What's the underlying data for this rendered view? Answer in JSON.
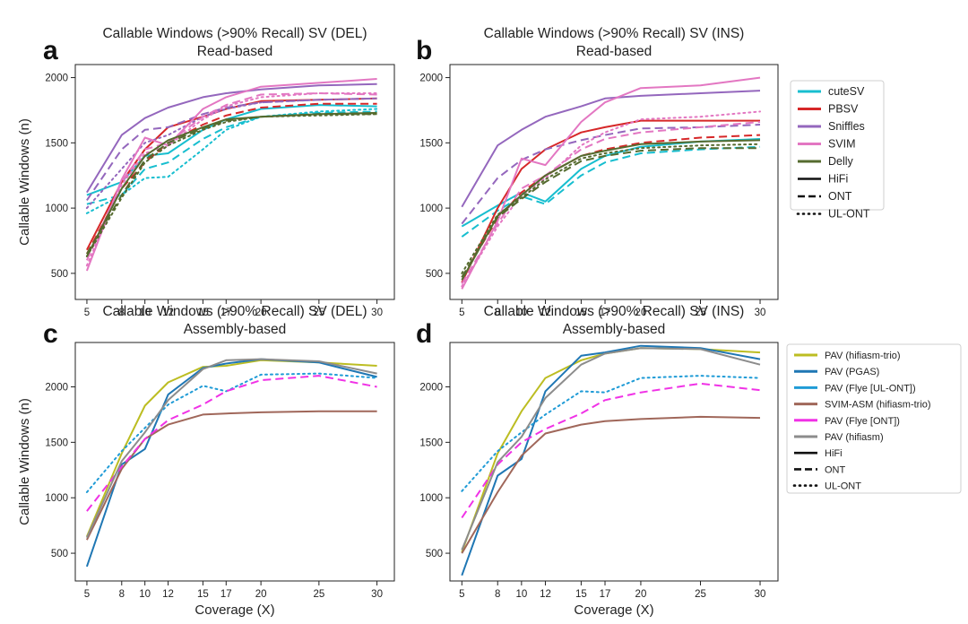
{
  "chart_data": [
    {
      "type": "line",
      "panel": "a",
      "title_line1": "Callable Windows (>90% Recall) SV (DEL)",
      "title_line2": "Read-based",
      "xlabel": "",
      "ylabel": "Callable Windows (n)",
      "x": [
        5,
        8,
        10,
        12,
        15,
        17,
        20,
        25,
        30
      ],
      "ylim": [
        300,
        2100
      ],
      "yticks": [
        500,
        1000,
        1500,
        2000
      ],
      "series": [
        {
          "name": "cuteSV HiFi",
          "color": "#17becf",
          "style": "solid",
          "values": [
            1100,
            1200,
            1400,
            1420,
            1600,
            1680,
            1760,
            1790,
            1780
          ]
        },
        {
          "name": "cuteSV ONT",
          "color": "#17becf",
          "style": "dashed",
          "values": [
            1030,
            1100,
            1300,
            1350,
            1530,
            1620,
            1700,
            1730,
            1740
          ]
        },
        {
          "name": "cuteSV UL-ONT",
          "color": "#17becf",
          "style": "dotted",
          "values": [
            960,
            1100,
            1230,
            1240,
            1450,
            1600,
            1700,
            1740,
            1760
          ]
        },
        {
          "name": "PBSV HiFi",
          "color": "#d62728",
          "style": "solid",
          "values": [
            680,
            1200,
            1450,
            1620,
            1700,
            1760,
            1820,
            1830,
            1840
          ]
        },
        {
          "name": "PBSV ONT",
          "color": "#d62728",
          "style": "dashed",
          "values": [
            650,
            1150,
            1350,
            1500,
            1640,
            1710,
            1770,
            1800,
            1800
          ]
        },
        {
          "name": "Sniffles HiFi",
          "color": "#9467bd",
          "style": "solid",
          "values": [
            1120,
            1560,
            1690,
            1770,
            1850,
            1880,
            1910,
            1940,
            1950
          ]
        },
        {
          "name": "Sniffles ONT",
          "color": "#9467bd",
          "style": "dashed",
          "values": [
            1060,
            1450,
            1600,
            1620,
            1720,
            1770,
            1810,
            1830,
            1840
          ]
        },
        {
          "name": "Sniffles UL-ONT",
          "color": "#9467bd",
          "style": "dotted",
          "values": [
            1000,
            1300,
            1500,
            1560,
            1700,
            1760,
            1810,
            1830,
            1840
          ]
        },
        {
          "name": "SVIM HiFi",
          "color": "#e377c2",
          "style": "solid",
          "values": [
            520,
            1220,
            1540,
            1480,
            1760,
            1850,
            1930,
            1960,
            1990
          ]
        },
        {
          "name": "SVIM ONT",
          "color": "#e377c2",
          "style": "dashed",
          "values": [
            600,
            1200,
            1450,
            1500,
            1700,
            1790,
            1870,
            1880,
            1870
          ]
        },
        {
          "name": "SVIM UL-ONT",
          "color": "#e377c2",
          "style": "dotted",
          "values": [
            560,
            1180,
            1420,
            1480,
            1680,
            1780,
            1850,
            1880,
            1880
          ]
        },
        {
          "name": "Delly HiFi",
          "color": "#556b2f",
          "style": "solid",
          "values": [
            630,
            1150,
            1400,
            1520,
            1620,
            1680,
            1700,
            1720,
            1730
          ]
        },
        {
          "name": "Delly ONT",
          "color": "#556b2f",
          "style": "dashed",
          "values": [
            650,
            1100,
            1370,
            1500,
            1610,
            1670,
            1700,
            1720,
            1720
          ]
        },
        {
          "name": "Delly UL-ONT",
          "color": "#556b2f",
          "style": "dotted",
          "values": [
            630,
            1080,
            1350,
            1480,
            1600,
            1660,
            1700,
            1710,
            1720
          ]
        }
      ]
    },
    {
      "type": "line",
      "panel": "b",
      "title_line1": "Callable Windows (>90% Recall) SV (INS)",
      "title_line2": "Read-based",
      "xlabel": "",
      "ylabel": "",
      "x": [
        5,
        8,
        10,
        12,
        15,
        17,
        20,
        25,
        30
      ],
      "ylim": [
        300,
        2100
      ],
      "yticks": [
        500,
        1000,
        1500,
        2000
      ],
      "series": [
        {
          "name": "cuteSV HiFi",
          "color": "#17becf",
          "style": "solid",
          "values": [
            860,
            1020,
            1120,
            1050,
            1300,
            1400,
            1470,
            1510,
            1530
          ]
        },
        {
          "name": "cuteSV ONT",
          "color": "#17becf",
          "style": "dashed",
          "values": [
            780,
            980,
            1090,
            1030,
            1250,
            1350,
            1420,
            1450,
            1470
          ]
        },
        {
          "name": "PBSV HiFi",
          "color": "#d62728",
          "style": "solid",
          "values": [
            430,
            1000,
            1300,
            1450,
            1580,
            1620,
            1670,
            1670,
            1670
          ]
        },
        {
          "name": "PBSV ONT",
          "color": "#d62728",
          "style": "dashed",
          "values": [
            470,
            920,
            1120,
            1250,
            1400,
            1450,
            1500,
            1540,
            1560
          ]
        },
        {
          "name": "Sniffles HiFi",
          "color": "#9467bd",
          "style": "solid",
          "values": [
            1010,
            1480,
            1600,
            1700,
            1780,
            1840,
            1860,
            1880,
            1900
          ]
        },
        {
          "name": "Sniffles ONT",
          "color": "#9467bd",
          "style": "dashed",
          "values": [
            880,
            1230,
            1370,
            1450,
            1520,
            1560,
            1610,
            1620,
            1640
          ]
        },
        {
          "name": "SVIM HiFi",
          "color": "#e377c2",
          "style": "solid",
          "values": [
            380,
            900,
            1380,
            1330,
            1660,
            1810,
            1920,
            1940,
            2000
          ]
        },
        {
          "name": "SVIM ONT",
          "color": "#e377c2",
          "style": "dashed",
          "values": [
            420,
            880,
            1150,
            1250,
            1450,
            1530,
            1580,
            1620,
            1660
          ]
        },
        {
          "name": "SVIM UL-ONT",
          "color": "#e377c2",
          "style": "dotted",
          "values": [
            400,
            860,
            1100,
            1230,
            1480,
            1580,
            1680,
            1700,
            1740
          ]
        },
        {
          "name": "Delly HiFi",
          "color": "#556b2f",
          "style": "solid",
          "values": [
            450,
            940,
            1100,
            1250,
            1400,
            1440,
            1490,
            1510,
            1520
          ]
        },
        {
          "name": "Delly ONT",
          "color": "#556b2f",
          "style": "dashed",
          "values": [
            470,
            930,
            1070,
            1200,
            1360,
            1400,
            1440,
            1460,
            1460
          ]
        },
        {
          "name": "Delly UL-ONT",
          "color": "#556b2f",
          "style": "dotted",
          "values": [
            500,
            950,
            1080,
            1220,
            1380,
            1420,
            1460,
            1480,
            1490
          ]
        }
      ]
    },
    {
      "type": "line",
      "panel": "c",
      "title_line1": "Callable Windows (>90% Recall) SV (DEL)",
      "title_line2": "Assembly-based",
      "xlabel": "Coverage (X)",
      "ylabel": "Callable Windows (n)",
      "x": [
        5,
        8,
        10,
        12,
        15,
        17,
        20,
        25,
        30
      ],
      "ylim": [
        250,
        2400
      ],
      "yticks": [
        500,
        1000,
        1500,
        2000
      ],
      "series": [
        {
          "name": "PAV (hifiasm-trio) HiFi",
          "color": "#bcbd22",
          "style": "solid",
          "values": [
            650,
            1400,
            1830,
            2040,
            2180,
            2190,
            2240,
            2220,
            2190
          ]
        },
        {
          "name": "PAV (PGAS) HiFi",
          "color": "#1f77b4",
          "style": "solid",
          "values": [
            380,
            1300,
            1440,
            1930,
            2170,
            2210,
            2250,
            2220,
            2090
          ]
        },
        {
          "name": "PAV (Flye [UL-ONT]) UL-ONT",
          "color": "#1f9bd6",
          "style": "dotted",
          "values": [
            1050,
            1420,
            1630,
            1840,
            2010,
            1960,
            2110,
            2120,
            2080
          ]
        },
        {
          "name": "SVIM-ASM (hifiasm-trio) HiFi",
          "color": "#a0675a",
          "style": "solid",
          "values": [
            620,
            1260,
            1530,
            1660,
            1750,
            1760,
            1770,
            1780,
            1780
          ]
        },
        {
          "name": "PAV (Flye [ONT]) ONT",
          "color": "#f032e6",
          "style": "dashed",
          "values": [
            880,
            1280,
            1530,
            1700,
            1840,
            1960,
            2060,
            2100,
            2000
          ]
        },
        {
          "name": "PAV (hifiasm) HiFi",
          "color": "#8c8c8c",
          "style": "solid",
          "values": [
            640,
            1330,
            1590,
            1880,
            2160,
            2240,
            2250,
            2230,
            2120
          ]
        }
      ]
    },
    {
      "type": "line",
      "panel": "d",
      "title_line1": "Callable Windows (>90% Recall) SV (INS)",
      "title_line2": "Assembly-based",
      "xlabel": "Coverage (X)",
      "ylabel": "",
      "x": [
        5,
        8,
        10,
        12,
        15,
        17,
        20,
        25,
        30
      ],
      "ylim": [
        250,
        2400
      ],
      "yticks": [
        500,
        1000,
        1500,
        2000
      ],
      "series": [
        {
          "name": "PAV (hifiasm-trio) HiFi",
          "color": "#bcbd22",
          "style": "solid",
          "values": [
            510,
            1400,
            1780,
            2080,
            2240,
            2300,
            2350,
            2340,
            2310
          ]
        },
        {
          "name": "PAV (PGAS) HiFi",
          "color": "#1f77b4",
          "style": "solid",
          "values": [
            300,
            1200,
            1350,
            1960,
            2280,
            2310,
            2370,
            2350,
            2250
          ]
        },
        {
          "name": "PAV (Flye [UL-ONT]) UL-ONT",
          "color": "#1f9bd6",
          "style": "dotted",
          "values": [
            1060,
            1420,
            1590,
            1750,
            1960,
            1950,
            2080,
            2100,
            2080
          ]
        },
        {
          "name": "SVIM-ASM (hifiasm-trio) HiFi",
          "color": "#a0675a",
          "style": "solid",
          "values": [
            500,
            1050,
            1380,
            1580,
            1660,
            1690,
            1710,
            1730,
            1720
          ]
        },
        {
          "name": "PAV (Flye [ONT]) ONT",
          "color": "#f032e6",
          "style": "dashed",
          "values": [
            820,
            1300,
            1500,
            1620,
            1760,
            1880,
            1950,
            2030,
            1970
          ]
        },
        {
          "name": "PAV (hifiasm) HiFi",
          "color": "#8c8c8c",
          "style": "solid",
          "values": [
            530,
            1320,
            1550,
            1900,
            2200,
            2300,
            2350,
            2340,
            2200
          ]
        }
      ]
    }
  ],
  "legend_read": {
    "callers": [
      {
        "label": "cuteSV",
        "color": "#17becf"
      },
      {
        "label": "PBSV",
        "color": "#d62728"
      },
      {
        "label": "Sniffles",
        "color": "#9467bd"
      },
      {
        "label": "SVIM",
        "color": "#e377c2"
      },
      {
        "label": "Delly",
        "color": "#556b2f"
      }
    ],
    "styles": [
      {
        "label": "HiFi",
        "style": "solid"
      },
      {
        "label": "ONT",
        "style": "dashed"
      },
      {
        "label": "UL-ONT",
        "style": "dotted"
      }
    ]
  },
  "legend_asm": {
    "callers": [
      {
        "label": "PAV (hifiasm-trio)",
        "color": "#bcbd22"
      },
      {
        "label": "PAV (PGAS)",
        "color": "#1f77b4"
      },
      {
        "label": "PAV (Flye [UL-ONT])",
        "color": "#1f9bd6"
      },
      {
        "label": "SVIM-ASM (hifiasm-trio)",
        "color": "#a0675a"
      },
      {
        "label": "PAV (Flye [ONT])",
        "color": "#f032e6"
      },
      {
        "label": "PAV (hifiasm)",
        "color": "#8c8c8c"
      }
    ],
    "styles": [
      {
        "label": "HiFi",
        "style": "solid"
      },
      {
        "label": "ONT",
        "style": "dashed"
      },
      {
        "label": "UL-ONT",
        "style": "dotted"
      }
    ]
  }
}
